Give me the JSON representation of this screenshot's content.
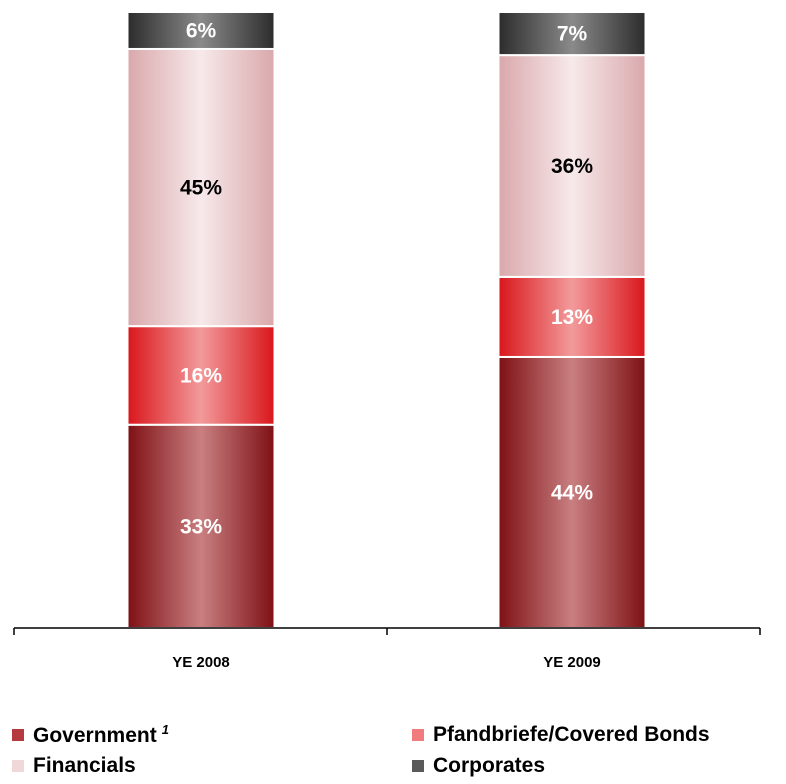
{
  "chart_data": {
    "type": "bar",
    "stacked": true,
    "normalized_percent": true,
    "categories": [
      "YE 2008",
      "YE 2009"
    ],
    "series": [
      {
        "name": "Government",
        "values": [
          33,
          44
        ],
        "labels": [
          "33%",
          "44%"
        ],
        "color": "#a8282c",
        "label_color": "#ffffff"
      },
      {
        "name": "Pfandbriefe/Covered Bonds",
        "values": [
          16,
          13
        ],
        "labels": [
          "16%",
          "13%"
        ],
        "color": "#e8373a",
        "label_color": "#ffffff"
      },
      {
        "name": "Financials",
        "values": [
          45,
          36
        ],
        "labels": [
          "45%",
          "36%"
        ],
        "color": "#e9c5c7",
        "label_color": "#000000"
      },
      {
        "name": "Corporates",
        "values": [
          6,
          7
        ],
        "labels": [
          "6%",
          "7%"
        ],
        "color": "#4a4a4a",
        "label_color": "#ffffff"
      }
    ],
    "legend": {
      "position": "bottom",
      "entries": [
        {
          "label": "Government",
          "superscript": "1"
        },
        {
          "label": "Pfandbriefe/Covered Bonds",
          "superscript": ""
        },
        {
          "label": "Financials",
          "superscript": ""
        },
        {
          "label": "Corporates",
          "superscript": ""
        }
      ]
    },
    "grid": false,
    "y_axis_visible": false
  }
}
